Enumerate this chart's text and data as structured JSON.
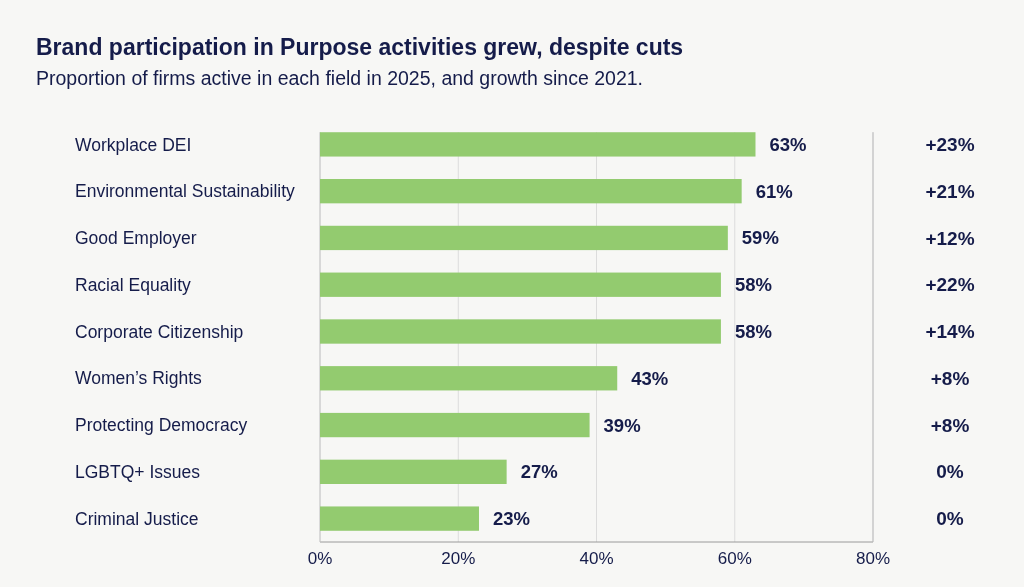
{
  "chart_data": {
    "type": "bar",
    "orientation": "horizontal",
    "title": "Brand participation in Purpose activities grew, despite cuts",
    "subtitle": "Proportion of firms active in each field in 2025, and growth since 2021.",
    "categories": [
      "Workplace DEI",
      "Environmental Sustainability",
      "Good Employer",
      "Racial Equality",
      "Corporate Citizenship",
      "Women’s Rights",
      "Protecting Democracy",
      "LGBTQ+ Issues",
      "Criminal Justice"
    ],
    "values": [
      63,
      61,
      59,
      58,
      58,
      43,
      39,
      27,
      23
    ],
    "value_labels": [
      "63%",
      "61%",
      "59%",
      "58%",
      "58%",
      "43%",
      "39%",
      "27%",
      "23%"
    ],
    "color": "#93cb6f",
    "xlim": [
      0,
      80
    ],
    "xticks": [
      {
        "value": 0,
        "label": "0%"
      },
      {
        "value": 20,
        "label": "20%"
      },
      {
        "value": 40,
        "label": "40%"
      },
      {
        "value": 60,
        "label": "60%"
      },
      {
        "value": 80,
        "label": "80%"
      }
    ],
    "grid": "x",
    "annotations": [
      "+23%",
      "+21%",
      "+12%",
      "+22%",
      "+14%",
      "+8%",
      "+8%",
      "0%",
      "0%"
    ]
  }
}
